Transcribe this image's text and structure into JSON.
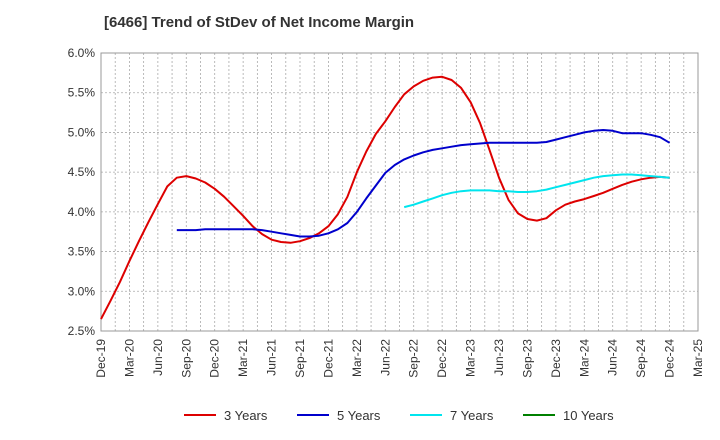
{
  "chart_data": {
    "type": "line",
    "title": "[6466]  Trend of StDev of Net Income Margin",
    "xlabel": "",
    "ylabel": "",
    "ylim": [
      2.5,
      6.0
    ],
    "grid": true,
    "legend_position": "bottom",
    "y_ticks": [
      "2.5%",
      "3.0%",
      "3.5%",
      "4.0%",
      "4.5%",
      "5.0%",
      "5.5%",
      "6.0%"
    ],
    "x_ticks": [
      "Dec-19",
      "Mar-20",
      "Jun-20",
      "Sep-20",
      "Dec-20",
      "Mar-21",
      "Jun-21",
      "Sep-21",
      "Dec-21",
      "Mar-22",
      "Jun-22",
      "Sep-22",
      "Dec-22",
      "Mar-23",
      "Jun-23",
      "Sep-23",
      "Dec-23",
      "Mar-24",
      "Jun-24",
      "Sep-24",
      "Dec-24",
      "Mar-25"
    ],
    "series": [
      {
        "name": "3 Years",
        "color": "#dd0000",
        "points": [
          [
            "Dec-19",
            2.65
          ],
          [
            "Jan-20",
            2.88
          ],
          [
            "Feb-20",
            3.12
          ],
          [
            "Mar-20",
            3.38
          ],
          [
            "Apr-20",
            3.63
          ],
          [
            "May-20",
            3.87
          ],
          [
            "Jun-20",
            4.1
          ],
          [
            "Jul-20",
            4.32
          ],
          [
            "Aug-20",
            4.43
          ],
          [
            "Sep-20",
            4.45
          ],
          [
            "Oct-20",
            4.42
          ],
          [
            "Nov-20",
            4.37
          ],
          [
            "Dec-20",
            4.29
          ],
          [
            "Jan-21",
            4.19
          ],
          [
            "Feb-21",
            4.07
          ],
          [
            "Mar-21",
            3.95
          ],
          [
            "Apr-21",
            3.82
          ],
          [
            "May-21",
            3.72
          ],
          [
            "Jun-21",
            3.65
          ],
          [
            "Jul-21",
            3.62
          ],
          [
            "Aug-21",
            3.61
          ],
          [
            "Sep-21",
            3.63
          ],
          [
            "Oct-21",
            3.67
          ],
          [
            "Nov-21",
            3.73
          ],
          [
            "Dec-21",
            3.82
          ],
          [
            "Jan-22",
            3.97
          ],
          [
            "Feb-22",
            4.19
          ],
          [
            "Mar-22",
            4.5
          ],
          [
            "Apr-22",
            4.76
          ],
          [
            "May-22",
            4.98
          ],
          [
            "Jun-22",
            5.14
          ],
          [
            "Jul-22",
            5.32
          ],
          [
            "Aug-22",
            5.48
          ],
          [
            "Sep-22",
            5.58
          ],
          [
            "Oct-22",
            5.65
          ],
          [
            "Nov-22",
            5.69
          ],
          [
            "Dec-22",
            5.7
          ],
          [
            "Jan-23",
            5.66
          ],
          [
            "Feb-23",
            5.56
          ],
          [
            "Mar-23",
            5.38
          ],
          [
            "Apr-23",
            5.12
          ],
          [
            "May-23",
            4.78
          ],
          [
            "Jun-23",
            4.43
          ],
          [
            "Jul-23",
            4.15
          ],
          [
            "Aug-23",
            3.98
          ],
          [
            "Sep-23",
            3.91
          ],
          [
            "Oct-23",
            3.89
          ],
          [
            "Nov-23",
            3.92
          ],
          [
            "Dec-23",
            4.02
          ],
          [
            "Jan-24",
            4.09
          ],
          [
            "Feb-24",
            4.13
          ],
          [
            "Mar-24",
            4.16
          ],
          [
            "Apr-24",
            4.2
          ],
          [
            "May-24",
            4.24
          ],
          [
            "Jun-24",
            4.29
          ],
          [
            "Jul-24",
            4.34
          ],
          [
            "Aug-24",
            4.38
          ],
          [
            "Sep-24",
            4.41
          ],
          [
            "Oct-24",
            4.43
          ],
          [
            "Nov-24",
            4.44
          ],
          [
            "Dec-24",
            4.43
          ]
        ]
      },
      {
        "name": "5 Years",
        "color": "#0000cc",
        "points": [
          [
            "Aug-20",
            3.77
          ],
          [
            "Sep-20",
            3.77
          ],
          [
            "Oct-20",
            3.77
          ],
          [
            "Nov-20",
            3.78
          ],
          [
            "Dec-20",
            3.78
          ],
          [
            "Jan-21",
            3.78
          ],
          [
            "Feb-21",
            3.78
          ],
          [
            "Mar-21",
            3.78
          ],
          [
            "Apr-21",
            3.78
          ],
          [
            "May-21",
            3.77
          ],
          [
            "Jun-21",
            3.75
          ],
          [
            "Jul-21",
            3.73
          ],
          [
            "Aug-21",
            3.71
          ],
          [
            "Sep-21",
            3.69
          ],
          [
            "Oct-21",
            3.69
          ],
          [
            "Nov-21",
            3.7
          ],
          [
            "Dec-21",
            3.73
          ],
          [
            "Jan-22",
            3.78
          ],
          [
            "Feb-22",
            3.86
          ],
          [
            "Mar-22",
            4.0
          ],
          [
            "Apr-22",
            4.17
          ],
          [
            "May-22",
            4.33
          ],
          [
            "Jun-22",
            4.49
          ],
          [
            "Jul-22",
            4.59
          ],
          [
            "Aug-22",
            4.66
          ],
          [
            "Sep-22",
            4.71
          ],
          [
            "Oct-22",
            4.75
          ],
          [
            "Nov-22",
            4.78
          ],
          [
            "Dec-22",
            4.8
          ],
          [
            "Jan-23",
            4.82
          ],
          [
            "Feb-23",
            4.84
          ],
          [
            "Mar-23",
            4.85
          ],
          [
            "Apr-23",
            4.86
          ],
          [
            "May-23",
            4.87
          ],
          [
            "Jun-23",
            4.87
          ],
          [
            "Jul-23",
            4.87
          ],
          [
            "Aug-23",
            4.87
          ],
          [
            "Sep-23",
            4.87
          ],
          [
            "Oct-23",
            4.87
          ],
          [
            "Nov-23",
            4.88
          ],
          [
            "Dec-23",
            4.91
          ],
          [
            "Jan-24",
            4.94
          ],
          [
            "Feb-24",
            4.97
          ],
          [
            "Mar-24",
            5.0
          ],
          [
            "Apr-24",
            5.02
          ],
          [
            "May-24",
            5.03
          ],
          [
            "Jun-24",
            5.02
          ],
          [
            "Jul-24",
            4.99
          ],
          [
            "Aug-24",
            4.99
          ],
          [
            "Sep-24",
            4.99
          ],
          [
            "Oct-24",
            4.97
          ],
          [
            "Nov-24",
            4.94
          ],
          [
            "Dec-24",
            4.87
          ]
        ]
      },
      {
        "name": "7 Years",
        "color": "#00e5ee",
        "points": [
          [
            "Aug-22",
            4.06
          ],
          [
            "Sep-22",
            4.09
          ],
          [
            "Oct-22",
            4.13
          ],
          [
            "Nov-22",
            4.17
          ],
          [
            "Dec-22",
            4.21
          ],
          [
            "Jan-23",
            4.24
          ],
          [
            "Feb-23",
            4.26
          ],
          [
            "Mar-23",
            4.27
          ],
          [
            "Apr-23",
            4.27
          ],
          [
            "May-23",
            4.27
          ],
          [
            "Jun-23",
            4.26
          ],
          [
            "Jul-23",
            4.26
          ],
          [
            "Aug-23",
            4.25
          ],
          [
            "Sep-23",
            4.25
          ],
          [
            "Oct-23",
            4.26
          ],
          [
            "Nov-23",
            4.28
          ],
          [
            "Dec-23",
            4.31
          ],
          [
            "Jan-24",
            4.34
          ],
          [
            "Feb-24",
            4.37
          ],
          [
            "Mar-24",
            4.4
          ],
          [
            "Apr-24",
            4.43
          ],
          [
            "May-24",
            4.45
          ],
          [
            "Jun-24",
            4.46
          ],
          [
            "Jul-24",
            4.47
          ],
          [
            "Aug-24",
            4.47
          ],
          [
            "Sep-24",
            4.46
          ],
          [
            "Oct-24",
            4.45
          ],
          [
            "Nov-24",
            4.44
          ],
          [
            "Dec-24",
            4.43
          ]
        ]
      },
      {
        "name": "10 Years",
        "color": "#008000",
        "points": []
      }
    ]
  }
}
